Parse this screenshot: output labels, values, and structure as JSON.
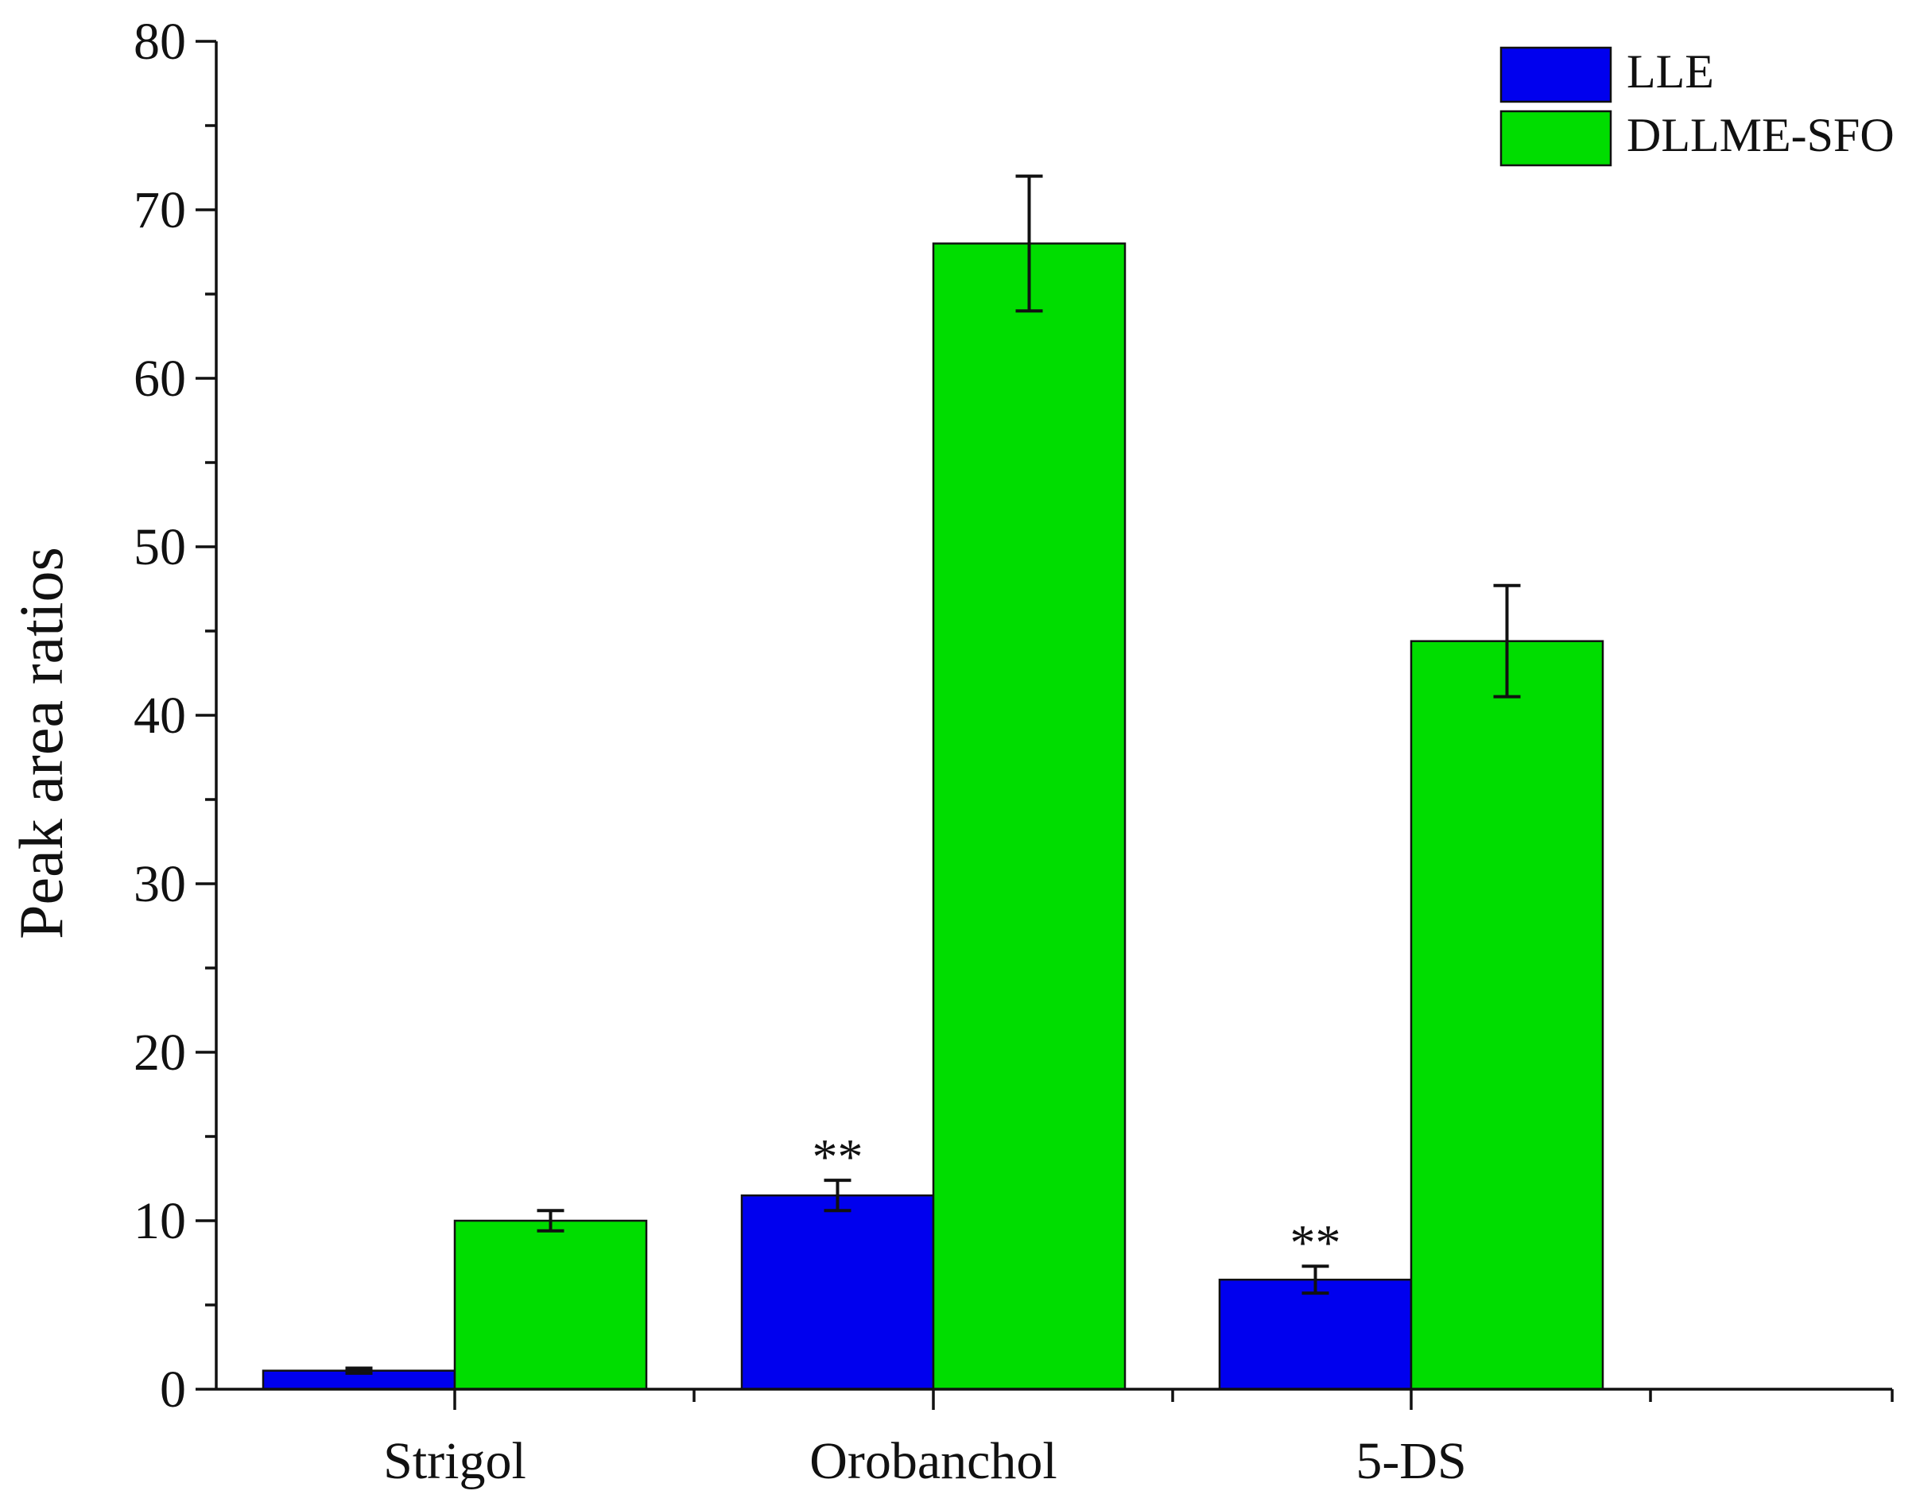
{
  "chart_data": {
    "type": "bar",
    "title": "",
    "xlabel": "",
    "ylabel": "Peak area ratios",
    "ylim": [
      0,
      80
    ],
    "yticks": [
      0,
      10,
      20,
      30,
      40,
      50,
      60,
      70,
      80
    ],
    "categories": [
      "Strigol",
      "Orobanchol",
      "5-DS"
    ],
    "series": [
      {
        "name": "LLE",
        "color": "#0000ee",
        "values": [
          1.1,
          11.5,
          6.5
        ],
        "errors": [
          0.15,
          0.9,
          0.8
        ],
        "annotations": [
          "",
          "**",
          "**"
        ]
      },
      {
        "name": "DLLME-SFO",
        "color": "#00dd00",
        "values": [
          10.0,
          68.0,
          44.4
        ],
        "errors": [
          0.6,
          4.0,
          3.3
        ],
        "annotations": [
          "",
          "",
          ""
        ]
      }
    ],
    "legend_position": "top-right",
    "grid": false
  }
}
